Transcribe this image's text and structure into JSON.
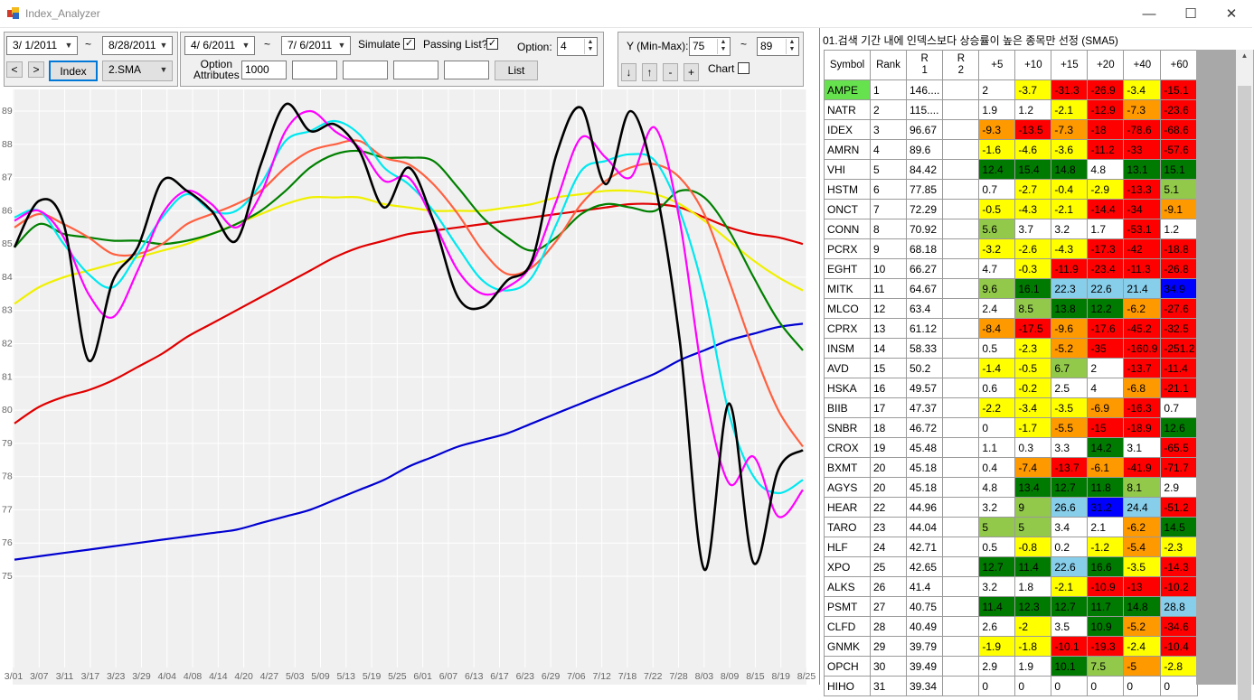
{
  "window": {
    "title": "Index_Analyzer",
    "min_glyph": "—",
    "max_glyph": "☐",
    "close_glyph": "✕"
  },
  "toolbar": {
    "start_date": "3/  1/2011",
    "end_date": "8/28/2011",
    "tilde": "~",
    "prev_glyph": "<",
    "next_glyph": ">",
    "index_label": "Index",
    "sma_value": "2.SMA",
    "opt_start": "4/  6/2011",
    "opt_end": "7/  6/2011",
    "simulate_label": "Simulate",
    "simulate_checked": "✓",
    "passing_label": "Passing List?",
    "passing_checked": "✓",
    "option_label": "Option:",
    "option_value": "4",
    "option_attributes_label": "Option\nAttributes",
    "attr1": "1000",
    "list_label": "List",
    "y_label": "Y (Min-Max):",
    "y_min": "75",
    "y_max": "89",
    "down_glyph": "↓",
    "up_glyph": "↑",
    "minus_glyph": "-",
    "plus_glyph": "+",
    "chart_label": "Chart"
  },
  "chart_data": {
    "type": "line",
    "ylim": [
      75,
      89
    ],
    "yticks": [
      "89",
      "88",
      "87",
      "86",
      "85",
      "84",
      "83",
      "82",
      "81",
      "80",
      "79",
      "78",
      "77",
      "76",
      "75"
    ],
    "xticks": [
      "3/01",
      "3/07",
      "3/11",
      "3/17",
      "3/23",
      "3/29",
      "4/04",
      "4/08",
      "4/14",
      "4/20",
      "4/27",
      "5/03",
      "5/09",
      "5/13",
      "5/19",
      "5/25",
      "6/01",
      "6/07",
      "6/13",
      "6/17",
      "6/23",
      "6/29",
      "7/06",
      "7/12",
      "7/18",
      "7/22",
      "7/28",
      "8/03",
      "8/09",
      "8/15",
      "8/19",
      "8/25"
    ],
    "grid": true,
    "series": [
      {
        "color": "#0000d0",
        "values": [
          75.5,
          75.6,
          75.7,
          75.8,
          75.9,
          76.0,
          76.1,
          76.2,
          76.3,
          76.4,
          76.6,
          76.8,
          77.0,
          77.3,
          77.6,
          77.9,
          78.3,
          78.6,
          78.9,
          79.1,
          79.3,
          79.6,
          79.9,
          80.2,
          80.5,
          80.8,
          81.1,
          81.5,
          81.8,
          82.1,
          82.3,
          82.5,
          82.6
        ]
      },
      {
        "color": "#e00000",
        "values": [
          79.6,
          80.1,
          80.4,
          80.6,
          80.9,
          81.3,
          81.7,
          82.2,
          82.6,
          83.0,
          83.4,
          83.8,
          84.2,
          84.6,
          84.9,
          85.1,
          85.3,
          85.4,
          85.5,
          85.6,
          85.7,
          85.8,
          85.9,
          86.0,
          86.1,
          86.2,
          86.2,
          86.1,
          85.8,
          85.5,
          85.3,
          85.2,
          85.0
        ]
      },
      {
        "color": "#f0f000",
        "values": [
          83.2,
          83.7,
          84.0,
          84.2,
          84.4,
          84.6,
          84.8,
          85.0,
          85.3,
          85.6,
          85.9,
          86.2,
          86.4,
          86.4,
          86.4,
          86.2,
          86.1,
          86.0,
          86.0,
          86.0,
          86.1,
          86.2,
          86.4,
          86.5,
          86.6,
          86.6,
          86.5,
          86.2,
          85.7,
          85.1,
          84.5,
          84.0,
          83.6
        ]
      },
      {
        "color": "#008000",
        "values": [
          84.9,
          85.6,
          85.3,
          85.2,
          85.1,
          85.1,
          85.0,
          85.1,
          85.3,
          85.6,
          86.0,
          86.6,
          87.3,
          87.7,
          87.8,
          87.6,
          87.6,
          87.5,
          86.7,
          85.8,
          85.2,
          84.8,
          85.2,
          85.9,
          86.2,
          86.1,
          86.0,
          86.6,
          86.4,
          85.4,
          84.0,
          82.7,
          81.8
        ]
      },
      {
        "color": "#ff6040",
        "values": [
          85.5,
          85.9,
          85.6,
          85.2,
          84.7,
          84.7,
          85.0,
          85.6,
          85.9,
          86.2,
          86.6,
          87.3,
          87.8,
          88.0,
          88.1,
          87.6,
          87.4,
          86.8,
          85.9,
          84.8,
          84.1,
          84.3,
          85.1,
          86.2,
          86.9,
          87.3,
          87.4,
          87.0,
          85.9,
          83.9,
          81.8,
          80.0,
          78.9
        ]
      },
      {
        "color": "#00e8f0",
        "values": [
          85.8,
          86.0,
          85.0,
          84.1,
          83.7,
          84.7,
          85.8,
          86.5,
          86.0,
          86.0,
          86.8,
          88.1,
          88.4,
          88.7,
          88.3,
          87.3,
          86.8,
          86.0,
          84.9,
          83.9,
          83.6,
          84.0,
          85.6,
          87.2,
          87.5,
          87.7,
          87.5,
          86.0,
          83.5,
          79.9,
          78.0,
          77.5,
          77.9
        ]
      },
      {
        "color": "#ff00ff",
        "values": [
          85.7,
          86.0,
          85.2,
          83.5,
          82.8,
          84.2,
          85.9,
          86.6,
          86.2,
          85.5,
          86.5,
          88.4,
          89.0,
          88.4,
          87.9,
          86.9,
          87.0,
          85.7,
          84.2,
          83.5,
          83.7,
          84.4,
          86.3,
          88.2,
          87.6,
          87.0,
          88.5,
          85.7,
          80.7,
          77.8,
          78.6,
          76.8,
          77.6
        ]
      },
      {
        "color": "#000000",
        "values": [
          84.9,
          86.3,
          85.6,
          81.5,
          83.9,
          84.9,
          86.9,
          86.6,
          86.0,
          85.1,
          87.4,
          89.2,
          88.4,
          88.6,
          87.8,
          86.1,
          87.3,
          85.7,
          83.4,
          83.1,
          83.9,
          84.5,
          87.7,
          89.1,
          86.8,
          89.0,
          86.8,
          82.1,
          75.2,
          80.2,
          75.4,
          78.2,
          78.8
        ]
      }
    ]
  },
  "results": {
    "title": "01.검색 기간 내에 인덱스보다 상승률이 높은 종목만 선정 (SMA5)",
    "headers": [
      "Symbol",
      "Rank",
      "R\n1",
      "R\n2",
      "+5",
      "+10",
      "+15",
      "+20",
      "+40",
      "+60"
    ],
    "rows": [
      {
        "symbol": "AMPE",
        "rank": "1",
        "r1": "146....",
        "r2": "",
        "vals": [
          "2",
          "-3.7",
          "-31.3",
          "-26.9",
          "-3.4",
          "-15.1"
        ]
      },
      {
        "symbol": "NATR",
        "rank": "2",
        "r1": "115....",
        "r2": "",
        "vals": [
          "1.9",
          "1.2",
          "-2.1",
          "-12.9",
          "-7.3",
          "-23.6"
        ]
      },
      {
        "symbol": "IDEX",
        "rank": "3",
        "r1": "96.67",
        "r2": "",
        "vals": [
          "-9.3",
          "-13.5",
          "-7.3",
          "-18",
          "-78.6",
          "-68.6"
        ]
      },
      {
        "symbol": "AMRN",
        "rank": "4",
        "r1": "89.6",
        "r2": "",
        "vals": [
          "-1.6",
          "-4.6",
          "-3.6",
          "-11.2",
          "-33",
          "-57.6"
        ]
      },
      {
        "symbol": "VHI",
        "rank": "5",
        "r1": "84.42",
        "r2": "",
        "vals": [
          "12.4",
          "15.4",
          "14.8",
          "4.8",
          "13.1",
          "15.1"
        ]
      },
      {
        "symbol": "HSTM",
        "rank": "6",
        "r1": "77.85",
        "r2": "",
        "vals": [
          "0.7",
          "-2.7",
          "-0.4",
          "-2.9",
          "-13.3",
          "5.1"
        ]
      },
      {
        "symbol": "ONCT",
        "rank": "7",
        "r1": "72.29",
        "r2": "",
        "vals": [
          "-0.5",
          "-4.3",
          "-2.1",
          "-14.4",
          "-34",
          "-9.1"
        ]
      },
      {
        "symbol": "CONN",
        "rank": "8",
        "r1": "70.92",
        "r2": "",
        "vals": [
          "5.6",
          "3.7",
          "3.2",
          "1.7",
          "-53.1",
          "1.2"
        ]
      },
      {
        "symbol": "PCRX",
        "rank": "9",
        "r1": "68.18",
        "r2": "",
        "vals": [
          "-3.2",
          "-2.6",
          "-4.3",
          "-17.3",
          "-42",
          "-18.8"
        ]
      },
      {
        "symbol": "EGHT",
        "rank": "10",
        "r1": "66.27",
        "r2": "",
        "vals": [
          "4.7",
          "-0.3",
          "-11.9",
          "-23.4",
          "-11.3",
          "-26.8"
        ]
      },
      {
        "symbol": "MITK",
        "rank": "11",
        "r1": "64.67",
        "r2": "",
        "vals": [
          "9.6",
          "16.1",
          "22.3",
          "22.6",
          "21.4",
          "34.9"
        ]
      },
      {
        "symbol": "MLCO",
        "rank": "12",
        "r1": "63.4",
        "r2": "",
        "vals": [
          "2.4",
          "8.5",
          "13.8",
          "12.2",
          "-6.2",
          "-27.6"
        ]
      },
      {
        "symbol": "CPRX",
        "rank": "13",
        "r1": "61.12",
        "r2": "",
        "vals": [
          "-8.4",
          "-17.5",
          "-9.6",
          "-17.6",
          "-45.2",
          "-32.5"
        ]
      },
      {
        "symbol": "INSM",
        "rank": "14",
        "r1": "58.33",
        "r2": "",
        "vals": [
          "0.5",
          "-2.3",
          "-5.2",
          "-35",
          "-160.9",
          "-251.2"
        ]
      },
      {
        "symbol": "AVD",
        "rank": "15",
        "r1": "50.2",
        "r2": "",
        "vals": [
          "-1.4",
          "-0.5",
          "6.7",
          "2",
          "-13.7",
          "-11.4"
        ]
      },
      {
        "symbol": "HSKA",
        "rank": "16",
        "r1": "49.57",
        "r2": "",
        "vals": [
          "0.6",
          "-0.2",
          "2.5",
          "4",
          "-6.8",
          "-21.1"
        ]
      },
      {
        "symbol": "BIIB",
        "rank": "17",
        "r1": "47.37",
        "r2": "",
        "vals": [
          "-2.2",
          "-3.4",
          "-3.5",
          "-6.9",
          "-16.3",
          "0.7"
        ]
      },
      {
        "symbol": "SNBR",
        "rank": "18",
        "r1": "46.72",
        "r2": "",
        "vals": [
          "0",
          "-1.7",
          "-5.5",
          "-15",
          "-18.9",
          "12.6"
        ]
      },
      {
        "symbol": "CROX",
        "rank": "19",
        "r1": "45.48",
        "r2": "",
        "vals": [
          "1.1",
          "0.3",
          "3.3",
          "14.2",
          "3.1",
          "-65.5"
        ]
      },
      {
        "symbol": "BXMT",
        "rank": "20",
        "r1": "45.18",
        "r2": "",
        "vals": [
          "0.4",
          "-7.4",
          "-13.7",
          "-6.1",
          "-41.9",
          "-71.7"
        ]
      },
      {
        "symbol": "AGYS",
        "rank": "20",
        "r1": "45.18",
        "r2": "",
        "vals": [
          "4.8",
          "13.4",
          "12.7",
          "11.8",
          "8.1",
          "2.9"
        ]
      },
      {
        "symbol": "HEAR",
        "rank": "22",
        "r1": "44.96",
        "r2": "",
        "vals": [
          "3.2",
          "9",
          "26.6",
          "31.2",
          "24.4",
          "-51.2"
        ]
      },
      {
        "symbol": "TARO",
        "rank": "23",
        "r1": "44.04",
        "r2": "",
        "vals": [
          "5",
          "5",
          "3.4",
          "2.1",
          "-6.2",
          "14.5"
        ]
      },
      {
        "symbol": "HLF",
        "rank": "24",
        "r1": "42.71",
        "r2": "",
        "vals": [
          "0.5",
          "-0.8",
          "0.2",
          "-1.2",
          "-5.4",
          "-2.3"
        ]
      },
      {
        "symbol": "XPO",
        "rank": "25",
        "r1": "42.65",
        "r2": "",
        "vals": [
          "12.7",
          "11.4",
          "22.6",
          "16.6",
          "-3.5",
          "-14.3"
        ]
      },
      {
        "symbol": "ALKS",
        "rank": "26",
        "r1": "41.4",
        "r2": "",
        "vals": [
          "3.2",
          "1.8",
          "-2.1",
          "-10.9",
          "-13",
          "-10.2"
        ]
      },
      {
        "symbol": "PSMT",
        "rank": "27",
        "r1": "40.75",
        "r2": "",
        "vals": [
          "11.4",
          "12.3",
          "12.7",
          "11.7",
          "14.8",
          "28.8"
        ]
      },
      {
        "symbol": "CLFD",
        "rank": "28",
        "r1": "40.49",
        "r2": "",
        "vals": [
          "2.6",
          "-2",
          "3.5",
          "10.9",
          "-5.2",
          "-34.6"
        ]
      },
      {
        "symbol": "GNMK",
        "rank": "29",
        "r1": "39.79",
        "r2": "",
        "vals": [
          "-1.9",
          "-1.8",
          "-10.1",
          "-19.3",
          "-2.4",
          "-10.4"
        ]
      },
      {
        "symbol": "OPCH",
        "rank": "30",
        "r1": "39.49",
        "r2": "",
        "vals": [
          "2.9",
          "1.9",
          "10.1",
          "7.5",
          "-5",
          "-2.8"
        ]
      },
      {
        "symbol": "HIHO",
        "rank": "31",
        "r1": "39.34",
        "r2": "",
        "vals": [
          "0",
          "0",
          "0",
          "0",
          "0",
          "0"
        ]
      }
    ],
    "colors": {
      "red": "#ff0000",
      "yellow": "#ffff00",
      "orange": "#ff9900",
      "lightgreen": "#92c94a",
      "green": "#007a00",
      "skyblue": "#87ceeb",
      "blue": "#0000ff",
      "symbol_highlight": "#66e24e"
    }
  }
}
